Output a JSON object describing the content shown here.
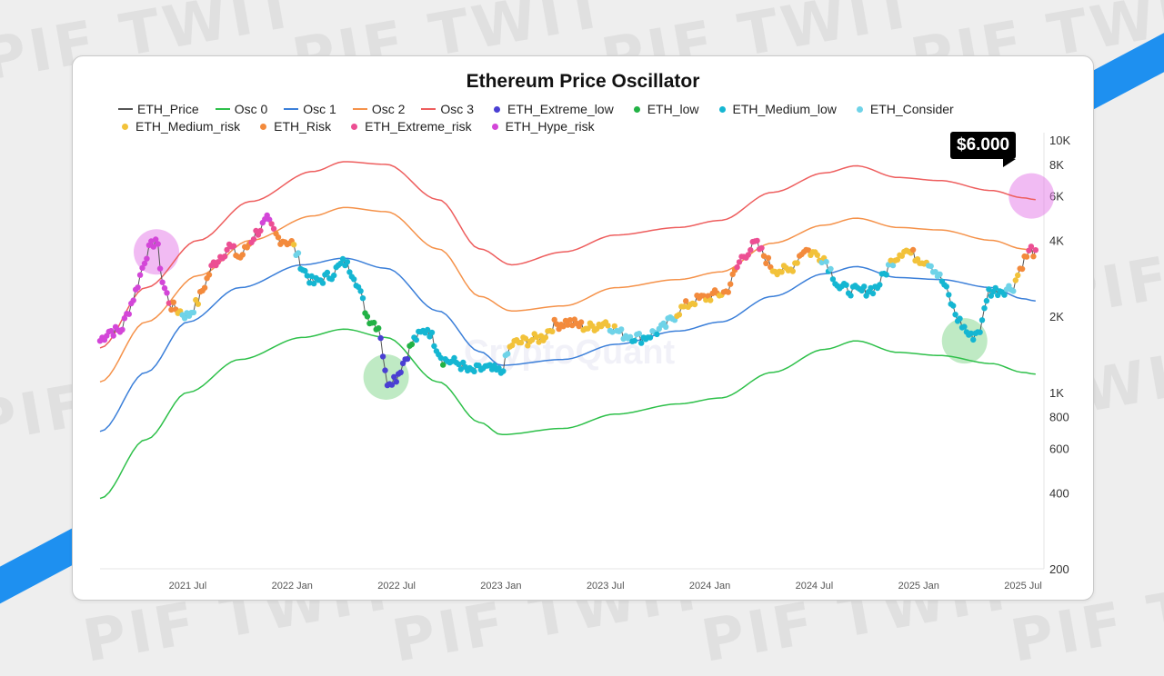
{
  "background": {
    "watermark_text": "PIF TWIT",
    "ribbon_color": "#1e90f0"
  },
  "chart_data": {
    "type": "line",
    "title": "Ethereum Price Oscillator",
    "watermark": "CryptoQuant",
    "y_scale": "log",
    "ylim": [
      200,
      10000
    ],
    "y_ticks": [
      {
        "value": 10000,
        "label": "10K"
      },
      {
        "value": 8000,
        "label": "8K"
      },
      {
        "value": 6000,
        "label": "6K"
      },
      {
        "value": 4000,
        "label": "4K"
      },
      {
        "value": 2000,
        "label": "2K"
      },
      {
        "value": 1000,
        "label": "1K"
      },
      {
        "value": 800,
        "label": "800"
      },
      {
        "value": 600,
        "label": "600"
      },
      {
        "value": 400,
        "label": "400"
      },
      {
        "value": 200,
        "label": "200"
      }
    ],
    "xlim": [
      2021.08,
      2025.6
    ],
    "x_ticks": [
      {
        "value": 2021.5,
        "label": "2021 Jul"
      },
      {
        "value": 2022.0,
        "label": "2022 Jan"
      },
      {
        "value": 2022.5,
        "label": "2022 Jul"
      },
      {
        "value": 2023.0,
        "label": "2023 Jan"
      },
      {
        "value": 2023.5,
        "label": "2023 Jul"
      },
      {
        "value": 2024.0,
        "label": "2024 Jan"
      },
      {
        "value": 2024.5,
        "label": "2024 Jul"
      },
      {
        "value": 2025.0,
        "label": "2025 Jan"
      },
      {
        "value": 2025.5,
        "label": "2025 Jul"
      }
    ],
    "legend": [
      {
        "name": "ETH_Price",
        "kind": "line",
        "color": "#555555"
      },
      {
        "name": "Osc 0",
        "kind": "line",
        "color": "#2ec04a"
      },
      {
        "name": "Osc 1",
        "kind": "line",
        "color": "#3b7fd9"
      },
      {
        "name": "Osc 2",
        "kind": "line",
        "color": "#f5924a"
      },
      {
        "name": "Osc 3",
        "kind": "line",
        "color": "#ee5e5e"
      },
      {
        "name": "ETH_Extreme_low",
        "kind": "dot",
        "color": "#4a3fd3"
      },
      {
        "name": "ETH_low",
        "kind": "dot",
        "color": "#22b245"
      },
      {
        "name": "ETH_Medium_low",
        "kind": "dot",
        "color": "#15b6d2"
      },
      {
        "name": "ETH_Consider",
        "kind": "dot",
        "color": "#6fd3e8"
      },
      {
        "name": "ETH_Medium_risk",
        "kind": "dot",
        "color": "#f2c23a"
      },
      {
        "name": "ETH_Risk",
        "kind": "dot",
        "color": "#f38a3c"
      },
      {
        "name": "ETH_Extreme_risk",
        "kind": "dot",
        "color": "#ec4f93"
      },
      {
        "name": "ETH_Hype_risk",
        "kind": "dot",
        "color": "#d346d8"
      }
    ],
    "series": [
      {
        "name": "Osc 3",
        "color": "#ee5e5e",
        "points": [
          [
            2021.08,
            1500
          ],
          [
            2021.3,
            2600
          ],
          [
            2021.55,
            4000
          ],
          [
            2021.8,
            5700
          ],
          [
            2022.1,
            7500
          ],
          [
            2022.25,
            8200
          ],
          [
            2022.45,
            8000
          ],
          [
            2022.7,
            5800
          ],
          [
            2022.9,
            3700
          ],
          [
            2023.05,
            3200
          ],
          [
            2023.3,
            3600
          ],
          [
            2023.55,
            4200
          ],
          [
            2023.85,
            4500
          ],
          [
            2024.05,
            4800
          ],
          [
            2024.3,
            6200
          ],
          [
            2024.55,
            7400
          ],
          [
            2024.7,
            7900
          ],
          [
            2024.9,
            7100
          ],
          [
            2025.1,
            6900
          ],
          [
            2025.35,
            6300
          ],
          [
            2025.5,
            5900
          ],
          [
            2025.56,
            5800
          ]
        ]
      },
      {
        "name": "Osc 2",
        "color": "#f5924a",
        "points": [
          [
            2021.08,
            1100
          ],
          [
            2021.3,
            1900
          ],
          [
            2021.55,
            2900
          ],
          [
            2021.8,
            4000
          ],
          [
            2022.1,
            5000
          ],
          [
            2022.25,
            5400
          ],
          [
            2022.45,
            5200
          ],
          [
            2022.7,
            3700
          ],
          [
            2022.9,
            2400
          ],
          [
            2023.05,
            2100
          ],
          [
            2023.3,
            2200
          ],
          [
            2023.55,
            2600
          ],
          [
            2023.85,
            2800
          ],
          [
            2024.05,
            3000
          ],
          [
            2024.3,
            3900
          ],
          [
            2024.55,
            4600
          ],
          [
            2024.7,
            4900
          ],
          [
            2024.9,
            4500
          ],
          [
            2025.1,
            4400
          ],
          [
            2025.35,
            4000
          ],
          [
            2025.5,
            3700
          ],
          [
            2025.56,
            3600
          ]
        ]
      },
      {
        "name": "Osc 1",
        "color": "#3b7fd9",
        "points": [
          [
            2021.08,
            700
          ],
          [
            2021.3,
            1200
          ],
          [
            2021.5,
            1900
          ],
          [
            2021.75,
            2600
          ],
          [
            2022.05,
            3200
          ],
          [
            2022.25,
            3400
          ],
          [
            2022.45,
            3100
          ],
          [
            2022.7,
            2100
          ],
          [
            2022.9,
            1450
          ],
          [
            2023.0,
            1280
          ],
          [
            2023.3,
            1350
          ],
          [
            2023.55,
            1550
          ],
          [
            2023.85,
            1750
          ],
          [
            2024.05,
            1900
          ],
          [
            2024.3,
            2400
          ],
          [
            2024.55,
            2950
          ],
          [
            2024.7,
            3150
          ],
          [
            2024.9,
            2850
          ],
          [
            2025.1,
            2800
          ],
          [
            2025.35,
            2600
          ],
          [
            2025.5,
            2350
          ],
          [
            2025.56,
            2300
          ]
        ]
      },
      {
        "name": "Osc 0",
        "color": "#2ec04a",
        "points": [
          [
            2021.08,
            380
          ],
          [
            2021.3,
            650
          ],
          [
            2021.5,
            1000
          ],
          [
            2021.75,
            1350
          ],
          [
            2022.05,
            1650
          ],
          [
            2022.25,
            1780
          ],
          [
            2022.45,
            1650
          ],
          [
            2022.7,
            1100
          ],
          [
            2022.9,
            760
          ],
          [
            2023.0,
            680
          ],
          [
            2023.3,
            720
          ],
          [
            2023.55,
            820
          ],
          [
            2023.85,
            900
          ],
          [
            2024.05,
            950
          ],
          [
            2024.3,
            1200
          ],
          [
            2024.55,
            1480
          ],
          [
            2024.7,
            1600
          ],
          [
            2024.9,
            1440
          ],
          [
            2025.1,
            1400
          ],
          [
            2025.35,
            1300
          ],
          [
            2025.5,
            1200
          ],
          [
            2025.56,
            1180
          ]
        ]
      },
      {
        "name": "ETH_Price",
        "color": "#555555",
        "points": [
          [
            2021.08,
            1600
          ],
          [
            2021.12,
            1750
          ],
          [
            2021.18,
            1750
          ],
          [
            2021.25,
            2500
          ],
          [
            2021.3,
            3500
          ],
          [
            2021.35,
            4100
          ],
          [
            2021.38,
            2700
          ],
          [
            2021.42,
            2200
          ],
          [
            2021.5,
            2000
          ],
          [
            2021.55,
            2300
          ],
          [
            2021.62,
            3200
          ],
          [
            2021.7,
            3800
          ],
          [
            2021.75,
            3400
          ],
          [
            2021.82,
            4200
          ],
          [
            2021.88,
            4800
          ],
          [
            2021.93,
            4100
          ],
          [
            2022.0,
            3900
          ],
          [
            2022.05,
            3100
          ],
          [
            2022.1,
            2700
          ],
          [
            2022.18,
            2900
          ],
          [
            2022.25,
            3300
          ],
          [
            2022.3,
            2900
          ],
          [
            2022.36,
            2000
          ],
          [
            2022.42,
            1800
          ],
          [
            2022.45,
            1100
          ],
          [
            2022.5,
            1150
          ],
          [
            2022.58,
            1600
          ],
          [
            2022.65,
            1800
          ],
          [
            2022.72,
            1350
          ],
          [
            2022.8,
            1300
          ],
          [
            2022.85,
            1200
          ],
          [
            2022.92,
            1250
          ],
          [
            2023.0,
            1200
          ],
          [
            2023.05,
            1550
          ],
          [
            2023.12,
            1600
          ],
          [
            2023.2,
            1650
          ],
          [
            2023.25,
            1850
          ],
          [
            2023.32,
            1900
          ],
          [
            2023.42,
            1800
          ],
          [
            2023.5,
            1900
          ],
          [
            2023.58,
            1700
          ],
          [
            2023.68,
            1640
          ],
          [
            2023.78,
            1800
          ],
          [
            2023.85,
            2100
          ],
          [
            2023.92,
            2300
          ],
          [
            2024.0,
            2400
          ],
          [
            2024.08,
            2500
          ],
          [
            2024.15,
            3400
          ],
          [
            2024.22,
            3900
          ],
          [
            2024.3,
            3100
          ],
          [
            2024.38,
            3000
          ],
          [
            2024.45,
            3700
          ],
          [
            2024.55,
            3400
          ],
          [
            2024.62,
            2600
          ],
          [
            2024.72,
            2500
          ],
          [
            2024.8,
            2600
          ],
          [
            2024.87,
            3300
          ],
          [
            2024.93,
            3700
          ],
          [
            2025.0,
            3400
          ],
          [
            2025.05,
            3300
          ],
          [
            2025.12,
            2700
          ],
          [
            2025.18,
            2000
          ],
          [
            2025.25,
            1650
          ],
          [
            2025.3,
            1800
          ],
          [
            2025.33,
            2500
          ],
          [
            2025.4,
            2550
          ],
          [
            2025.45,
            2600
          ],
          [
            2025.5,
            3300
          ],
          [
            2025.54,
            3700
          ],
          [
            2025.56,
            3500
          ]
        ]
      }
    ],
    "callouts": [
      {
        "label": "$6.000",
        "x": 2025.54,
        "y": 6000,
        "color": "#e478e8"
      },
      {
        "x": 2021.35,
        "y": 3600,
        "color": "#e478e8"
      },
      {
        "x": 2022.45,
        "y": 1150,
        "color": "#7fd68a"
      },
      {
        "x": 2025.22,
        "y": 1600,
        "color": "#7fd68a"
      }
    ]
  }
}
